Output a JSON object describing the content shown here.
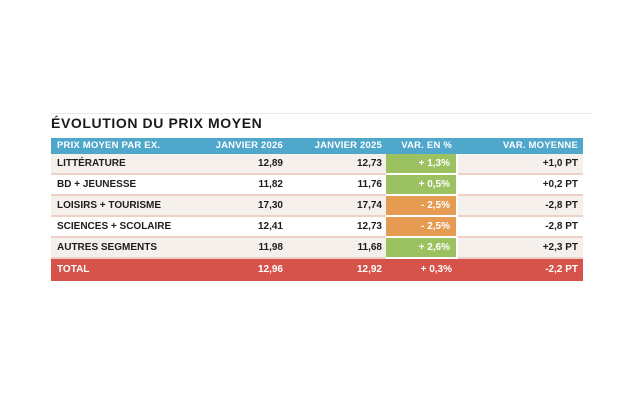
{
  "title": "ÉVOLUTION DU PRIX MOYEN",
  "table": {
    "headers": [
      "PRIX MOYEN PAR EX.",
      "JANVIER 2026",
      "JANVIER 2025",
      "VAR. EN %",
      "VAR. MOYENNE"
    ],
    "rows": [
      {
        "label": "LITTÉRATURE",
        "jan_2026": "12,89",
        "jan_2025": "12,73",
        "var_pct": "+ 1,3%",
        "var_moy": "+1,0 PT",
        "trend": "up"
      },
      {
        "label": "BD + JEUNESSE",
        "jan_2026": "11,82",
        "jan_2025": "11,76",
        "var_pct": "+ 0,5%",
        "var_moy": "+0,2 PT",
        "trend": "up"
      },
      {
        "label": "LOISIRS + TOURISME",
        "jan_2026": "17,30",
        "jan_2025": "17,74",
        "var_pct": "- 2,5%",
        "var_moy": "-2,8 PT",
        "trend": "down"
      },
      {
        "label": "SCIENCES + SCOLAIRE",
        "jan_2026": "12,41",
        "jan_2025": "12,73",
        "var_pct": "- 2,5%",
        "var_moy": "-2,8 PT",
        "trend": "down"
      },
      {
        "label": "AUTRES SEGMENTS",
        "jan_2026": "11,98",
        "jan_2025": "11,68",
        "var_pct": "+ 2,6%",
        "var_moy": "+2,3 PT",
        "trend": "up"
      }
    ],
    "total": {
      "label": "TOTAL",
      "jan_2026": "12,96",
      "jan_2025": "12,92",
      "var_pct": "+ 0,3%",
      "var_moy": "-2,2 PT"
    }
  },
  "colors": {
    "header_bg": "#4fa7cb",
    "positive_bg": "#9cc161",
    "negative_bg": "#e59b52",
    "total_bg": "#d5534a",
    "row_alt_bg": "#f5f0eb",
    "row_separator": "#eed0c6",
    "title_color": "#1a1a1a",
    "text_color": "#1d1d1b"
  },
  "chart_data": {
    "type": "table",
    "title": "ÉVOLUTION DU PRIX MOYEN",
    "columns": [
      "PRIX MOYEN PAR EX.",
      "JANVIER 2026",
      "JANVIER 2025",
      "VAR. EN %",
      "VAR. MOYENNE"
    ],
    "rows": [
      [
        "LITTÉRATURE",
        12.89,
        12.73,
        "+1,3%",
        "+1,0 PT"
      ],
      [
        "BD + JEUNESSE",
        11.82,
        11.76,
        "+0,5%",
        "+0,2 PT"
      ],
      [
        "LOISIRS + TOURISME",
        17.3,
        17.74,
        "-2,5%",
        "-2,8 PT"
      ],
      [
        "SCIENCES + SCOLAIRE",
        12.41,
        12.73,
        "-2,5%",
        "-2,8 PT"
      ],
      [
        "AUTRES SEGMENTS",
        11.98,
        11.68,
        "+2,6%",
        "+2,3 PT"
      ],
      [
        "TOTAL",
        12.96,
        12.92,
        "+0,3%",
        "-2,2 PT"
      ]
    ]
  }
}
